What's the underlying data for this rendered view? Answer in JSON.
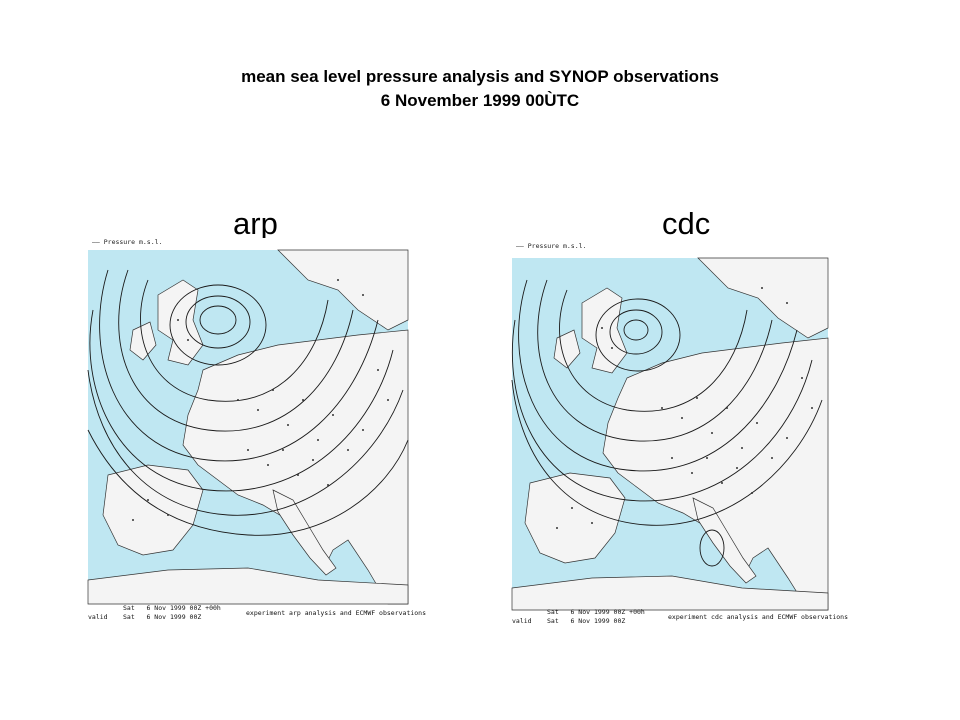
{
  "title": {
    "line1": "mean sea level pressure analysis and SYNOP observations",
    "line2": "6 November 1999 00ÙTC"
  },
  "panels": [
    {
      "label": "arp",
      "legend": "—— Pressure m.s.l.",
      "footer_run": "Sat   6 Nov 1999 00Z +00h",
      "footer_valid_prefix": "valid",
      "footer_valid": "Sat   6 Nov 1999 00Z",
      "footer_experiment": "experiment arp analysis and ECMWF observations"
    },
    {
      "label": "cdc",
      "legend": "—— Pressure m.s.l.",
      "footer_run": "Sat   6 Nov 1999 00Z +00h",
      "footer_valid_prefix": "valid",
      "footer_valid": "Sat   6 Nov 1999 00Z",
      "footer_experiment": "experiment cdc analysis and ECMWF observations"
    }
  ],
  "colors": {
    "sea": "#bfe7f2",
    "land": "#f4f4f4",
    "isobar": "#1a1a1a"
  }
}
